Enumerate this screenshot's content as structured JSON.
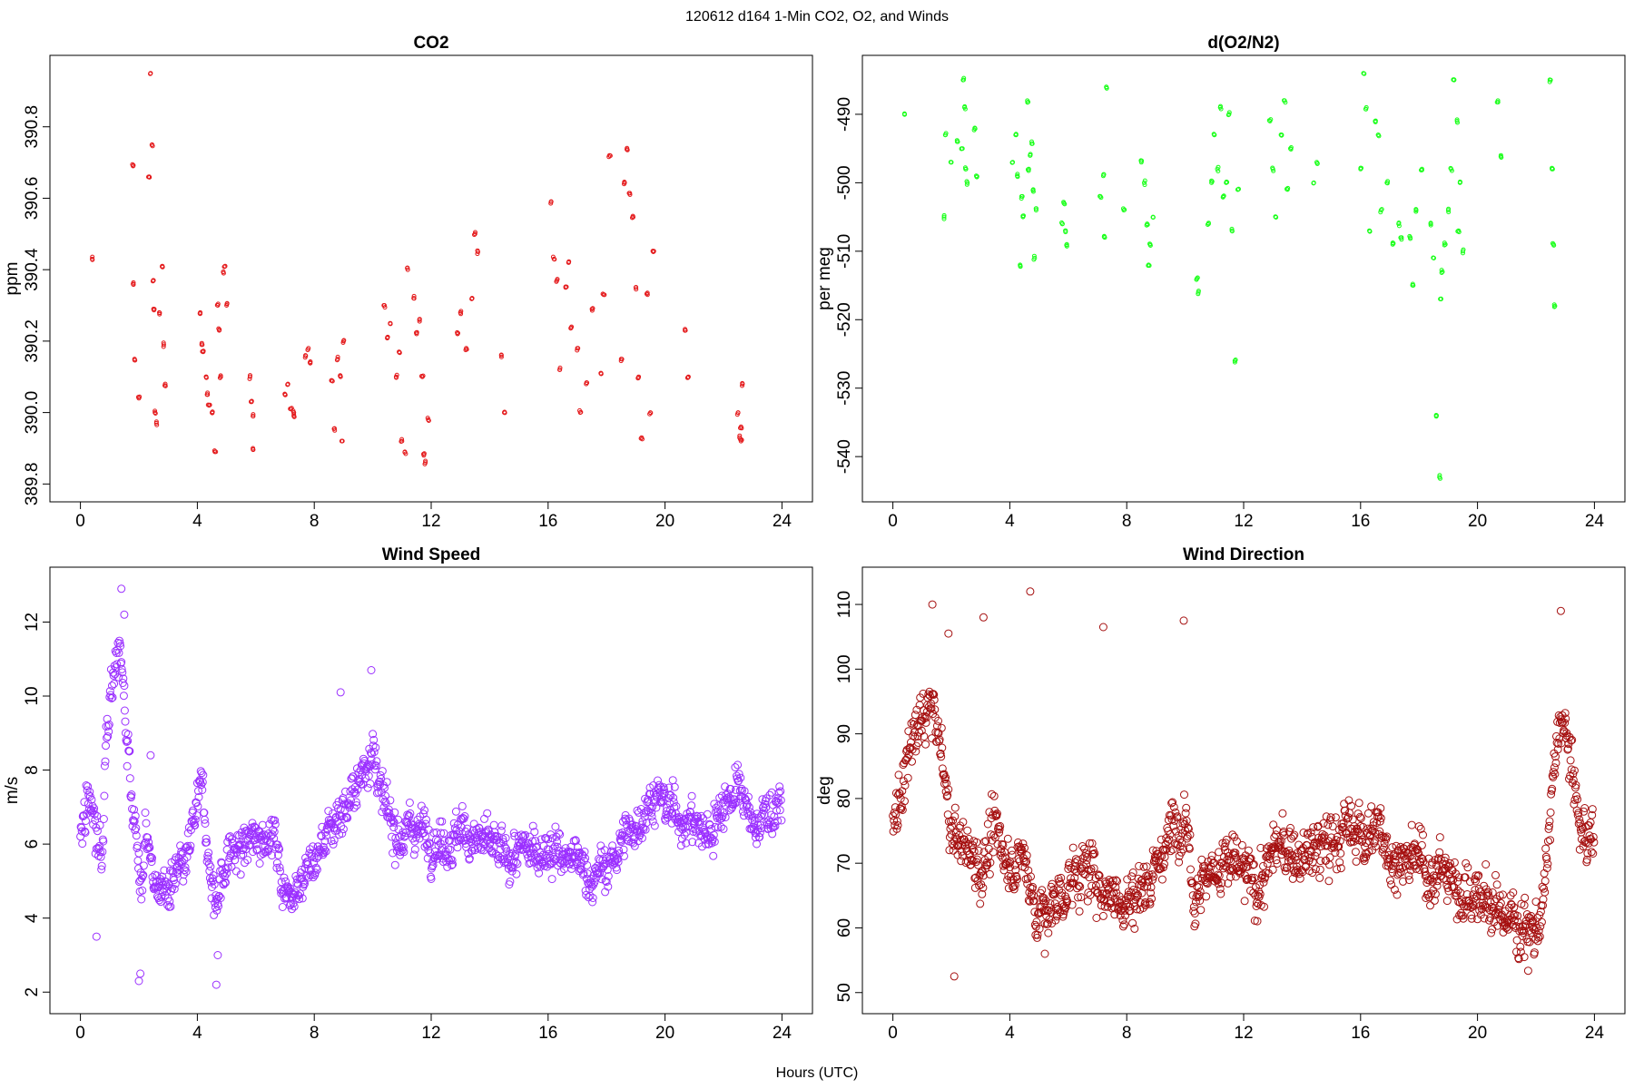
{
  "figure": {
    "suptitle": "120612   d164   1-Min CO2, O2, and Winds",
    "xlabel": "Hours (UTC)"
  },
  "chart_data": [
    {
      "type": "scatter",
      "title": "CO2",
      "ylabel": "ppm",
      "xlim": [
        0,
        24
      ],
      "ylim": [
        389.8,
        390.95
      ],
      "x_ticks": [
        0,
        4,
        8,
        12,
        16,
        20,
        24
      ],
      "y_ticks": [
        389.8,
        390.0,
        390.2,
        390.4,
        390.6,
        390.8
      ],
      "y_tick_labels": [
        "389.8",
        "390.0",
        "390.2",
        "390.4",
        "390.6",
        "390.8"
      ],
      "color": "#e41a1c",
      "marker_radius": 2,
      "series": [
        {
          "x": [
            0.4,
            1.8,
            1.8,
            1.85,
            2.0,
            2.35,
            2.4,
            2.45,
            2.5,
            2.5,
            2.55,
            2.6,
            2.7,
            2.8,
            2.85,
            2.9,
            4.1,
            4.15,
            4.2,
            4.3,
            4.35,
            4.4,
            4.5,
            4.6,
            4.7,
            4.75,
            4.8,
            4.9,
            4.95,
            5.0,
            5.8,
            5.85,
            5.9,
            5.9,
            7.0,
            7.1,
            7.2,
            7.3,
            7.3,
            7.7,
            7.8,
            7.85,
            8.6,
            8.7,
            8.8,
            8.9,
            8.95,
            9.0,
            10.4,
            10.5,
            10.6,
            10.8,
            10.9,
            11.0,
            11.1,
            11.2,
            11.4,
            11.5,
            11.6,
            11.7,
            11.75,
            11.8,
            11.9,
            12.9,
            13.0,
            13.2,
            13.4,
            13.5,
            13.6,
            14.4,
            14.5,
            16.1,
            16.2,
            16.3,
            16.4,
            16.6,
            16.7,
            16.8,
            17.0,
            17.1,
            17.3,
            17.5,
            17.8,
            17.9,
            18.1,
            18.5,
            18.6,
            18.7,
            18.8,
            18.9,
            19.0,
            19.1,
            19.2,
            19.4,
            19.5,
            19.6,
            20.7,
            20.8,
            22.5,
            22.55,
            22.6,
            22.6,
            22.65
          ],
          "y": [
            390.43,
            390.69,
            390.36,
            390.15,
            390.04,
            390.66,
            390.95,
            390.75,
            390.37,
            390.29,
            390.0,
            389.97,
            390.28,
            390.41,
            390.19,
            390.08,
            390.28,
            390.19,
            390.17,
            390.1,
            390.05,
            390.02,
            390.0,
            389.89,
            390.3,
            390.23,
            390.1,
            390.39,
            390.41,
            390.3,
            390.1,
            390.03,
            389.99,
            389.9,
            390.05,
            390.08,
            390.01,
            389.99,
            390.0,
            390.16,
            390.18,
            390.14,
            390.09,
            389.95,
            390.15,
            390.1,
            389.92,
            390.2,
            390.3,
            390.21,
            390.25,
            390.1,
            390.17,
            389.92,
            389.89,
            390.4,
            390.32,
            390.22,
            390.26,
            390.1,
            389.88,
            389.86,
            389.98,
            390.22,
            390.28,
            390.18,
            390.32,
            390.5,
            390.45,
            390.16,
            390.0,
            390.59,
            390.43,
            390.37,
            390.12,
            390.35,
            390.42,
            390.24,
            390.18,
            390.0,
            390.08,
            390.29,
            390.11,
            390.33,
            390.72,
            390.15,
            390.64,
            390.74,
            390.61,
            390.55,
            390.35,
            390.1,
            389.93,
            390.33,
            390.0,
            390.45,
            390.23,
            390.1,
            390.0,
            389.93,
            389.96,
            389.92,
            390.08
          ],
          "note": ""
        }
      ]
    },
    {
      "type": "scatter",
      "title": "d(O2/N2)",
      "ylabel": "per meg",
      "xlim": [
        0,
        24
      ],
      "ylim": [
        -544,
        -484
      ],
      "x_ticks": [
        0,
        4,
        8,
        12,
        16,
        20,
        24
      ],
      "y_ticks": [
        -490,
        -500,
        -510,
        -520,
        -530,
        -540
      ],
      "y_tick_labels": [
        "-490",
        "-500",
        "-510",
        "-520",
        "-530",
        "-540"
      ],
      "color": "#1aff1a",
      "marker_radius": 2,
      "series": [
        {
          "x": [
            0.4,
            1.75,
            1.8,
            2.0,
            2.2,
            2.35,
            2.4,
            2.45,
            2.5,
            2.55,
            2.8,
            2.85,
            4.1,
            4.2,
            4.25,
            4.35,
            4.4,
            4.45,
            4.6,
            4.65,
            4.7,
            4.75,
            4.8,
            4.85,
            4.9,
            5.8,
            5.85,
            5.9,
            5.95,
            7.1,
            7.2,
            7.25,
            7.3,
            7.9,
            8.5,
            8.6,
            8.7,
            8.75,
            8.8,
            8.9,
            10.4,
            10.45,
            10.8,
            10.9,
            11.0,
            11.1,
            11.2,
            11.3,
            11.4,
            11.5,
            11.6,
            11.7,
            11.8,
            12.9,
            13.0,
            13.1,
            13.3,
            13.4,
            13.5,
            13.6,
            14.4,
            14.5,
            16.0,
            16.1,
            16.2,
            16.3,
            16.5,
            16.6,
            16.7,
            16.9,
            17.1,
            17.3,
            17.4,
            17.7,
            17.8,
            17.9,
            18.1,
            18.4,
            18.5,
            18.6,
            18.7,
            18.75,
            18.8,
            18.9,
            19.0,
            19.1,
            19.2,
            19.3,
            19.35,
            19.4,
            19.5,
            20.7,
            20.8,
            22.5,
            22.55,
            22.6,
            22.65
          ],
          "y": [
            -490,
            -505,
            -493,
            -497,
            -494,
            -495,
            -485,
            -489,
            -498,
            -500,
            -492,
            -499,
            -497,
            -493,
            -499,
            -512,
            -502,
            -505,
            -488,
            -498,
            -496,
            -494,
            -501,
            -511,
            -504,
            -506,
            -503,
            -507,
            -509,
            -502,
            -499,
            -508,
            -486,
            -504,
            -497,
            -500,
            -506,
            -512,
            -509,
            -505,
            -514,
            -516,
            -506,
            -500,
            -493,
            -498,
            -489,
            -502,
            -500,
            -490,
            -507,
            -526,
            -501,
            -491,
            -498,
            -505,
            -493,
            -488,
            -501,
            -495,
            -500,
            -497,
            -498,
            -484,
            -489,
            -507,
            -491,
            -493,
            -504,
            -500,
            -509,
            -506,
            -508,
            -508,
            -515,
            -504,
            -498,
            -506,
            -511,
            -534,
            -543,
            -517,
            -513,
            -509,
            -504,
            -498,
            -485,
            -491,
            -507,
            -500,
            -510,
            -488,
            -496,
            -485,
            -498,
            -509,
            -518
          ],
          "note": ""
        }
      ]
    },
    {
      "type": "scatter",
      "title": "Wind Speed",
      "ylabel": "m/s",
      "xlim": [
        0,
        24
      ],
      "ylim": [
        1.9,
        13.0
      ],
      "x_ticks": [
        0,
        4,
        8,
        12,
        16,
        20,
        24
      ],
      "y_ticks": [
        2,
        4,
        6,
        8,
        10,
        12
      ],
      "y_tick_labels": [
        "2",
        "4",
        "6",
        "8",
        "10",
        "12"
      ],
      "color": "#9b30ff",
      "marker_radius": 4,
      "series": [
        {
          "anchors_x": [
            0.0,
            0.15,
            0.3,
            0.45,
            0.6,
            0.75,
            0.9,
            1.05,
            1.2,
            1.35,
            1.5,
            1.65,
            1.8,
            1.95,
            2.1,
            2.25,
            2.4,
            2.55,
            2.7,
            3.0,
            3.3,
            3.6,
            4.0,
            4.2,
            4.4,
            4.6,
            4.8,
            5.0,
            5.3,
            5.6,
            6.0,
            6.3,
            6.6,
            6.9,
            7.1,
            7.3,
            7.6,
            8.0,
            8.5,
            9.0,
            9.5,
            9.8,
            10.0,
            10.2,
            10.5,
            11.0,
            11.5,
            12.0,
            12.5,
            13.0,
            13.5,
            14.0,
            14.5,
            15.0,
            15.5,
            16.0,
            16.5,
            17.0,
            17.5,
            18.0,
            18.5,
            19.0,
            19.5,
            20.0,
            20.5,
            21.0,
            21.5,
            22.0,
            22.5,
            23.0,
            23.5,
            24.0
          ],
          "anchors_y": [
            6.4,
            6.8,
            7.2,
            6.8,
            6.0,
            5.5,
            9.5,
            10.5,
            11.0,
            11.2,
            10.0,
            8.5,
            7.0,
            6.0,
            4.5,
            6.5,
            5.5,
            5.0,
            4.8,
            4.7,
            5.0,
            5.3,
            7.0,
            7.4,
            5.5,
            4.5,
            5.0,
            5.6,
            5.8,
            5.9,
            6.1,
            6.4,
            6.3,
            5.0,
            4.6,
            5.0,
            5.2,
            5.5,
            6.4,
            7.0,
            7.5,
            8.3,
            8.8,
            7.5,
            6.6,
            6.3,
            6.5,
            6.2,
            6.1,
            6.3,
            6.2,
            5.9,
            5.6,
            5.7,
            5.8,
            6.0,
            5.6,
            5.5,
            5.1,
            5.3,
            6.0,
            6.5,
            7.3,
            7.0,
            6.8,
            6.5,
            6.2,
            7.2,
            7.5,
            6.4,
            6.9,
            7.0
          ],
          "spread": 0.75,
          "extremes": [
            {
              "x": 1.4,
              "y": 12.9
            },
            {
              "x": 1.5,
              "y": 12.2
            },
            {
              "x": 2.0,
              "y": 2.3
            },
            {
              "x": 2.05,
              "y": 2.5
            },
            {
              "x": 4.65,
              "y": 2.2
            },
            {
              "x": 9.95,
              "y": 10.7
            },
            {
              "x": 8.9,
              "y": 10.1
            },
            {
              "x": 0.55,
              "y": 3.5
            },
            {
              "x": 2.4,
              "y": 8.4
            },
            {
              "x": 4.7,
              "y": 3.0
            }
          ],
          "count": 1440
        }
      ]
    },
    {
      "type": "scatter",
      "title": "Wind Direction",
      "ylabel": "deg",
      "xlim": [
        0,
        24
      ],
      "ylim": [
        49.5,
        113
      ],
      "x_ticks": [
        0,
        4,
        8,
        12,
        16,
        20,
        24
      ],
      "y_ticks": [
        50,
        60,
        70,
        80,
        90,
        100,
        110
      ],
      "y_tick_labels": [
        "50",
        "60",
        "70",
        "80",
        "90",
        "100",
        "110"
      ],
      "color": "#a50f0f",
      "marker_radius": 4,
      "series": [
        {
          "anchors_x": [
            0.0,
            0.5,
            1.0,
            1.3,
            1.6,
            2.0,
            2.5,
            3.0,
            3.5,
            4.0,
            4.5,
            5.0,
            5.5,
            6.0,
            6.5,
            7.0,
            7.5,
            8.0,
            8.5,
            9.0,
            9.5,
            10.0,
            10.3,
            10.6,
            11.0,
            11.5,
            12.0,
            12.5,
            13.0,
            13.5,
            14.0,
            14.5,
            15.0,
            15.5,
            16.0,
            16.5,
            17.0,
            17.5,
            18.0,
            18.5,
            19.0,
            19.5,
            20.0,
            20.5,
            21.0,
            21.5,
            22.0,
            22.3,
            22.6,
            22.9,
            23.2,
            23.5,
            24.0
          ],
          "anchors_y": [
            74,
            86,
            92,
            95,
            88,
            75,
            72,
            70,
            74,
            71,
            70,
            62,
            63,
            67,
            69,
            67,
            66,
            64,
            66,
            70,
            74,
            80,
            66,
            68,
            69,
            70,
            68,
            66,
            72,
            72,
            71,
            72,
            73,
            75,
            75,
            75,
            72,
            70,
            70,
            69,
            68,
            66,
            65,
            63,
            62,
            61,
            60,
            64,
            84,
            92,
            85,
            75,
            74
          ],
          "spread": 5.5,
          "extremes": [
            {
              "x": 1.35,
              "y": 110
            },
            {
              "x": 4.7,
              "y": 112
            },
            {
              "x": 1.9,
              "y": 105.5
            },
            {
              "x": 3.1,
              "y": 108
            },
            {
              "x": 7.2,
              "y": 106.5
            },
            {
              "x": 9.95,
              "y": 107.5
            },
            {
              "x": 22.85,
              "y": 109
            },
            {
              "x": 2.1,
              "y": 52.5
            },
            {
              "x": 21.6,
              "y": 55.5
            },
            {
              "x": 5.2,
              "y": 56
            }
          ],
          "count": 1440
        }
      ]
    }
  ]
}
